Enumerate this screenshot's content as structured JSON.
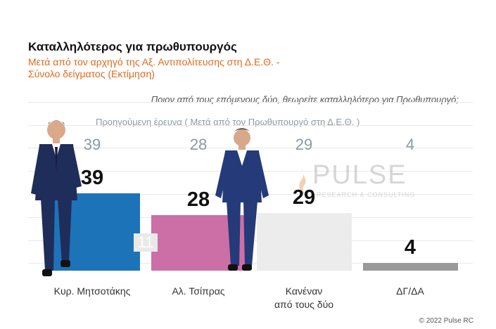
{
  "header": {
    "title": "Καταλληλότερος για πρωθυπουργός",
    "subtitle_line1": "Μετά από τον αρχηγό της Αξ. Αντιπολίτευσης στη Δ.Ε.Θ. -",
    "subtitle_line2": "Σύνολο δείγματος   (Εκτίμηση)",
    "question": "Ποιον από τους επόμενους δύο, θεωρείτε καταλληλότερο για Πρωθυπουργό;",
    "previous_label": "Προηγούμενη έρευνα  ( Μετά από τον Πρωθυπουργό στη Δ.Ε.Θ. )"
  },
  "watermark": {
    "main": "PULSE",
    "sub": "RESEARCH & CONSULTING"
  },
  "overlay_value": "11",
  "credit": "© 2022 Pulse RC",
  "colors": {
    "mitsotakis": "#1d73b8",
    "tsipras": "#cc6fa6",
    "none": "#ececec",
    "dk": "#999999",
    "accent": "#e06a1a"
  },
  "chart_data": {
    "type": "bar",
    "categories": [
      "Κυρ. Μητσοτάκης",
      "Αλ. Τσίπρας",
      "Κανέναν από τους δύο",
      "ΔΓ/ΔΑ"
    ],
    "category_lines": [
      [
        "Κυρ. Μητσοτάκης"
      ],
      [
        "Αλ. Τσίπρας"
      ],
      [
        "Κανέναν",
        "από τους δύο"
      ],
      [
        "ΔΓ/ΔΑ"
      ]
    ],
    "values": [
      39,
      28,
      29,
      4
    ],
    "value_labels": [
      "39",
      "28",
      "29",
      "4"
    ],
    "previous_values": [
      39,
      28,
      29,
      4
    ],
    "previous_labels": [
      "39",
      "28",
      "29",
      "4"
    ],
    "title": "Καταλληλότερος για πρωθυπουργός",
    "ylim": [
      0,
      40
    ],
    "grid": true
  }
}
